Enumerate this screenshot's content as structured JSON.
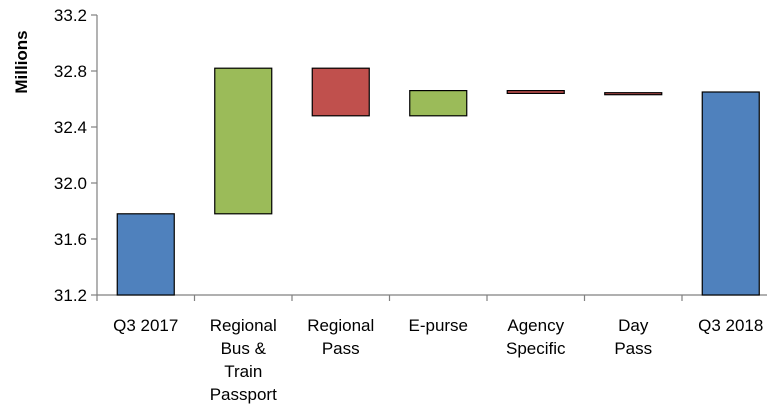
{
  "chart_data": {
    "type": "bar",
    "subtype": "waterfall",
    "ylabel": "Millions",
    "xlabel": "",
    "ylim": [
      31.2,
      33.2
    ],
    "yticks": [
      "31.2",
      "31.6",
      "32.0",
      "32.4",
      "32.8",
      "33.2"
    ],
    "grid": false,
    "legend": "none",
    "colors": {
      "total": "#4f81bd",
      "increase": "#9bbb59",
      "decrease": "#c0504d"
    },
    "categories": [
      [
        "Q3 2017"
      ],
      [
        "Regional",
        "Bus &",
        "Train",
        "Passport"
      ],
      [
        "Regional",
        "Pass"
      ],
      [
        "E-purse"
      ],
      [
        "Agency",
        "Specific"
      ],
      [
        "Day",
        "Pass"
      ],
      [
        "Q3 2018"
      ]
    ],
    "bars": [
      {
        "kind": "total",
        "start": 31.2,
        "end": 31.78
      },
      {
        "kind": "increase",
        "start": 31.78,
        "end": 32.82
      },
      {
        "kind": "decrease",
        "start": 32.82,
        "end": 32.48
      },
      {
        "kind": "increase",
        "start": 32.48,
        "end": 32.66
      },
      {
        "kind": "decrease",
        "start": 32.66,
        "end": 32.64
      },
      {
        "kind": "decrease",
        "start": 32.645,
        "end": 32.64
      },
      {
        "kind": "total",
        "start": 31.2,
        "end": 32.65
      }
    ]
  }
}
